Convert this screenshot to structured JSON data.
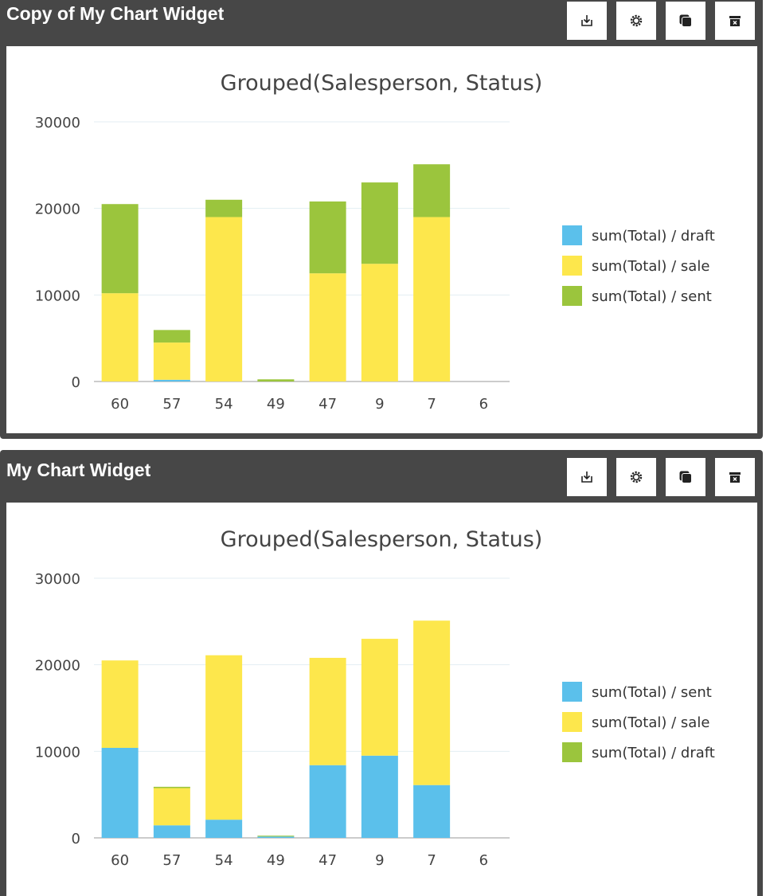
{
  "widgets": [
    {
      "title": "Copy of My Chart Widget",
      "toolbar": {
        "download_icon": "download-icon",
        "settings_icon": "gear-icon",
        "copy_icon": "copy-icon",
        "delete_icon": "trash-icon"
      },
      "chart_data": {
        "type": "bar",
        "stacked": true,
        "title": "Grouped(Salesperson, Status)",
        "xlabel": "",
        "ylabel": "",
        "categories": [
          "60",
          "57",
          "54",
          "49",
          "47",
          "9",
          "7",
          "6"
        ],
        "ylim": [
          0,
          30000
        ],
        "yticks": [
          0,
          10000,
          20000,
          30000
        ],
        "grid": true,
        "legend_position": "right",
        "series": [
          {
            "name": "sum(Total) / draft",
            "color": "#5bc0eb",
            "values": [
              0,
              200,
              0,
              0,
              0,
              0,
              0,
              0
            ]
          },
          {
            "name": "sum(Total) / sale",
            "color": "#fde74c",
            "values": [
              10200,
              4300,
              19000,
              0,
              12500,
              13600,
              19000,
              0
            ]
          },
          {
            "name": "sum(Total) / sent",
            "color": "#9bc53d",
            "values": [
              10300,
              1450,
              2000,
              250,
              8300,
              9400,
              6100,
              0
            ]
          }
        ]
      }
    },
    {
      "title": "My Chart Widget",
      "toolbar": {
        "download_icon": "download-icon",
        "settings_icon": "gear-icon",
        "copy_icon": "copy-icon",
        "delete_icon": "trash-icon"
      },
      "chart_data": {
        "type": "bar",
        "stacked": true,
        "title": "Grouped(Salesperson, Status)",
        "xlabel": "",
        "ylabel": "",
        "categories": [
          "60",
          "57",
          "54",
          "49",
          "47",
          "9",
          "7",
          "6"
        ],
        "ylim": [
          0,
          30000
        ],
        "yticks": [
          0,
          10000,
          20000,
          30000
        ],
        "grid": true,
        "legend_position": "right",
        "series": [
          {
            "name": "sum(Total) / sent",
            "color": "#5bc0eb",
            "values": [
              10400,
              1450,
              2100,
              150,
              8400,
              9500,
              6100,
              0
            ]
          },
          {
            "name": "sum(Total) / sale",
            "color": "#fde74c",
            "values": [
              10100,
              4300,
              19000,
              0,
              12400,
              13500,
              19000,
              0
            ]
          },
          {
            "name": "sum(Total) / draft",
            "color": "#9bc53d",
            "values": [
              0,
              150,
              0,
              100,
              0,
              0,
              0,
              0
            ]
          }
        ]
      }
    }
  ]
}
